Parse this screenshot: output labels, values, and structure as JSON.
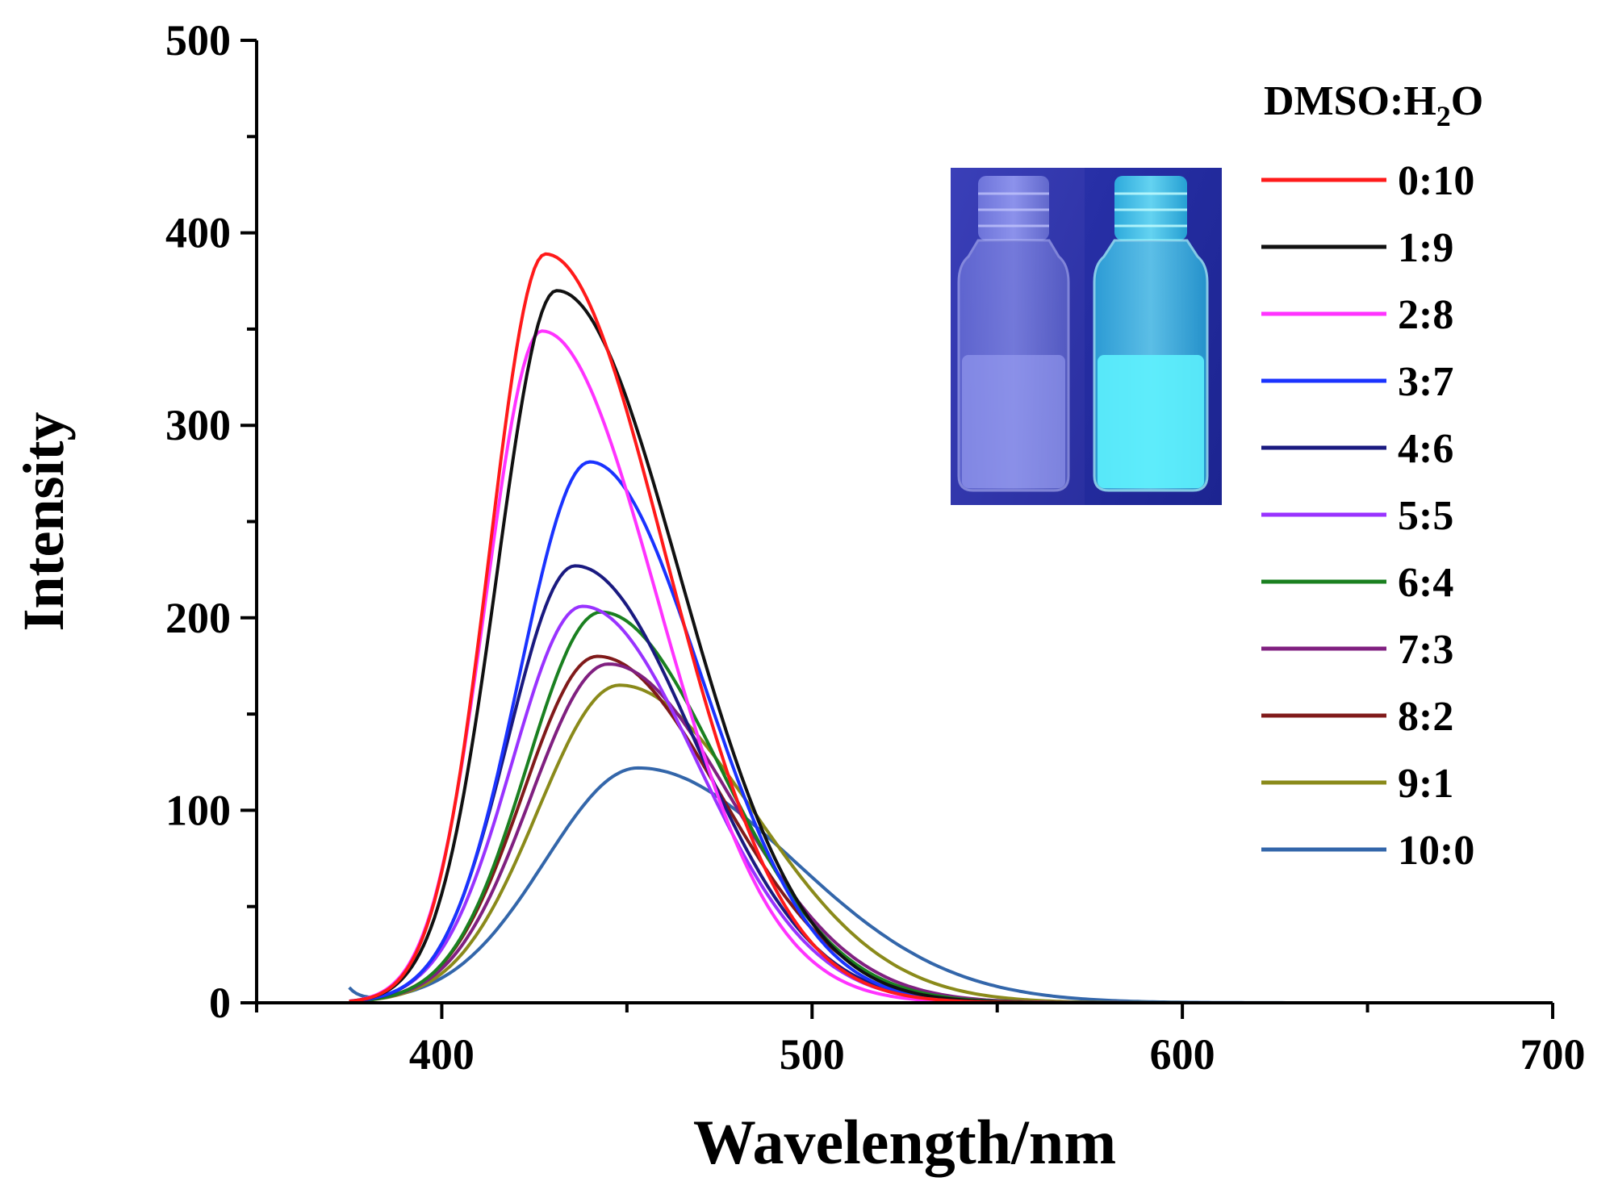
{
  "chart_data": {
    "type": "line",
    "title": "",
    "xlabel": "Wavelength/nm",
    "ylabel": "Intensity",
    "xlim": [
      350,
      700
    ],
    "ylim": [
      0,
      500
    ],
    "xticks": [
      400,
      500,
      600,
      700
    ],
    "yticks": [
      0,
      100,
      200,
      300,
      400,
      500
    ],
    "grid": false,
    "legend_title": "DMSO:H",
    "legend_title_sub": "2",
    "legend_title_end": "O",
    "legend_position": "top-right",
    "inset": "photo of two vials under UV light: left vial faint, right vial bright cyan fluorescence",
    "series": [
      {
        "name": "0:10",
        "color": "#ff1a1a",
        "peak_x": 428,
        "peak_y": 389,
        "width_left": 15,
        "width_right": 32,
        "tail": 0
      },
      {
        "name": "1:9",
        "color": "#111111",
        "peak_x": 431,
        "peak_y": 370,
        "width_left": 16,
        "width_right": 33,
        "tail": 0
      },
      {
        "name": "2:8",
        "color": "#ff33ff",
        "peak_x": 427,
        "peak_y": 349,
        "width_left": 15,
        "width_right": 31,
        "tail": 0
      },
      {
        "name": "3:7",
        "color": "#1a33ff",
        "peak_x": 440,
        "peak_y": 281,
        "width_left": 19,
        "width_right": 30,
        "tail": 0
      },
      {
        "name": "4:6",
        "color": "#1a1a80",
        "peak_x": 436,
        "peak_y": 227,
        "width_left": 18,
        "width_right": 32,
        "tail": 0
      },
      {
        "name": "5:5",
        "color": "#9933ff",
        "peak_x": 438,
        "peak_y": 206,
        "width_left": 19,
        "width_right": 31,
        "tail": 0
      },
      {
        "name": "6:4",
        "color": "#1a8020",
        "peak_x": 443,
        "peak_y": 203,
        "width_left": 20,
        "width_right": 32,
        "tail": 0
      },
      {
        "name": "7:3",
        "color": "#802080",
        "peak_x": 445,
        "peak_y": 176,
        "width_left": 21,
        "width_right": 33,
        "tail": 0
      },
      {
        "name": "8:2",
        "color": "#801a1a",
        "peak_x": 442,
        "peak_y": 180,
        "width_left": 20,
        "width_right": 33,
        "tail": 0
      },
      {
        "name": "9:1",
        "color": "#8a8a1a",
        "peak_x": 448,
        "peak_y": 165,
        "width_left": 22,
        "width_right": 36,
        "tail": 0
      },
      {
        "name": "10:0",
        "color": "#3366aa",
        "peak_x": 453,
        "peak_y": 122,
        "width_left": 25,
        "width_right": 42,
        "tail": 7
      }
    ]
  }
}
